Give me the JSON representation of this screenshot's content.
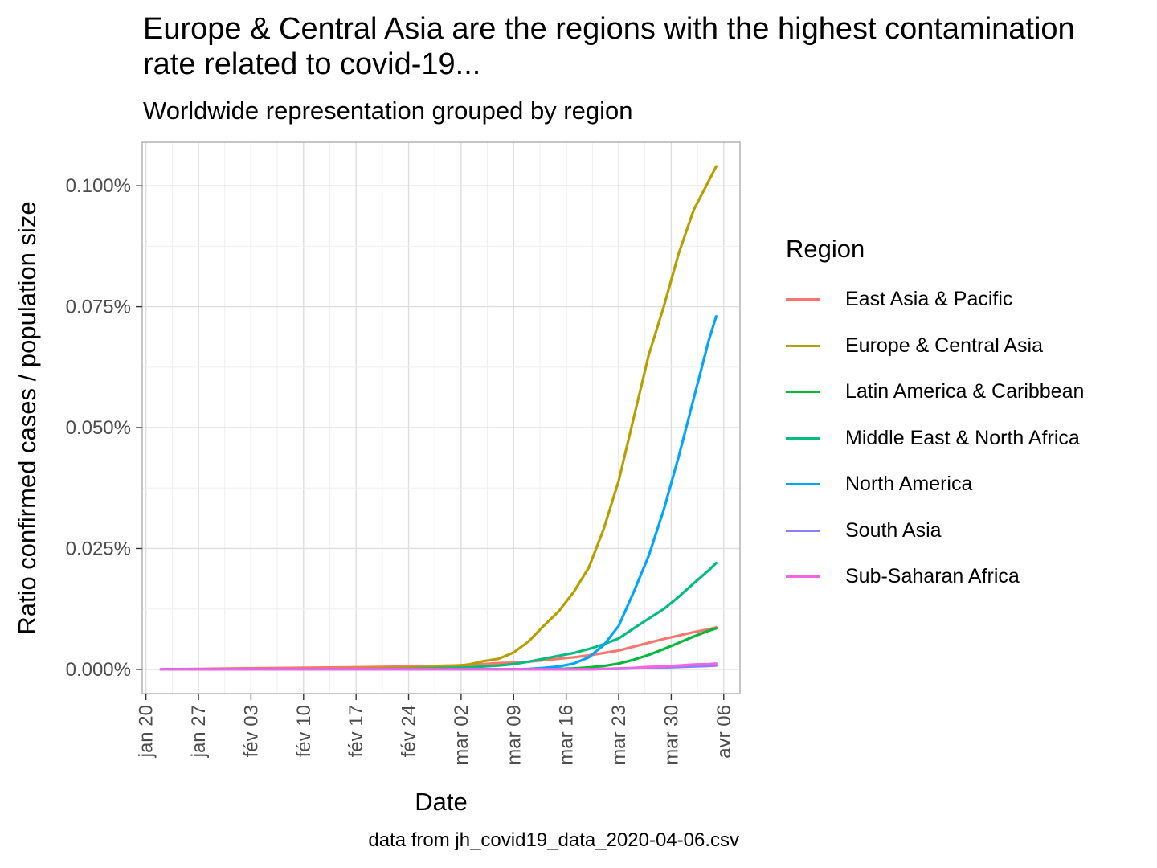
{
  "chart_data": {
    "type": "line",
    "title": "Europe & Central Asia are the regions with the highest contamination rate related to covid-19...",
    "subtitle": "Worldwide representation grouped by region",
    "caption": "data from jh_covid19_data_2020-04-06.csv",
    "xlabel": "Date",
    "ylabel": "Ratio confirmed cases / population size",
    "x_tick_labels": [
      "jan 20",
      "jan 27",
      "fév 03",
      "fév 10",
      "fév 17",
      "fév 24",
      "mar 02",
      "mar 09",
      "mar 16",
      "mar 23",
      "mar 30",
      "avr 06"
    ],
    "y_tick_labels": [
      "0.000%",
      "0.025%",
      "0.050%",
      "0.075%",
      "0.100%"
    ],
    "ylim": [
      -0.005,
      0.109
    ],
    "y_unit": "%",
    "grid": true,
    "legend_title": "Region",
    "legend_position": "right",
    "x": [
      "2020-01-22",
      "2020-02-01",
      "2020-02-15",
      "2020-02-24",
      "2020-03-01",
      "2020-03-03",
      "2020-03-05",
      "2020-03-07",
      "2020-03-09",
      "2020-03-11",
      "2020-03-13",
      "2020-03-15",
      "2020-03-17",
      "2020-03-19",
      "2020-03-21",
      "2020-03-23",
      "2020-03-25",
      "2020-03-27",
      "2020-03-29",
      "2020-03-31",
      "2020-04-02",
      "2020-04-04",
      "2020-04-05"
    ],
    "series": [
      {
        "name": "East Asia & Pacific",
        "color": "#F8766D",
        "values": [
          0,
          0.0002,
          0.0004,
          0.0006,
          0.0008,
          0.0009,
          0.0011,
          0.0013,
          0.0014,
          0.0016,
          0.0019,
          0.0022,
          0.0025,
          0.0029,
          0.0034,
          0.0039,
          0.0047,
          0.0055,
          0.0063,
          0.007,
          0.0077,
          0.0083,
          0.0087
        ]
      },
      {
        "name": "Europe & Central Asia",
        "color": "#B79F00",
        "values": [
          0,
          0,
          0.0001,
          0.0003,
          0.0007,
          0.001,
          0.0017,
          0.0022,
          0.0035,
          0.0058,
          0.009,
          0.012,
          0.016,
          0.021,
          0.029,
          0.039,
          0.052,
          0.065,
          0.075,
          0.086,
          0.095,
          0.101,
          0.104
        ]
      },
      {
        "name": "Latin America & Caribbean",
        "color": "#00BA38",
        "values": [
          0,
          0,
          0,
          0,
          0,
          0,
          0,
          0,
          0,
          0,
          0,
          0.0001,
          0.0002,
          0.0004,
          0.0007,
          0.0012,
          0.002,
          0.003,
          0.0042,
          0.0055,
          0.0068,
          0.008,
          0.0085
        ]
      },
      {
        "name": "Middle East & North Africa",
        "color": "#00BF7D",
        "values": [
          0,
          0,
          0,
          0.0001,
          0.0003,
          0.0004,
          0.0006,
          0.0008,
          0.0011,
          0.0016,
          0.0022,
          0.0028,
          0.0034,
          0.0042,
          0.0052,
          0.0064,
          0.0085,
          0.0105,
          0.0125,
          0.015,
          0.0178,
          0.0205,
          0.022
        ]
      },
      {
        "name": "North America",
        "color": "#00A5FF",
        "values": [
          0,
          0,
          0,
          0,
          0,
          0,
          0,
          0,
          0,
          0.0001,
          0.0003,
          0.0006,
          0.0012,
          0.0025,
          0.005,
          0.009,
          0.016,
          0.0235,
          0.033,
          0.044,
          0.056,
          0.068,
          0.073
        ]
      },
      {
        "name": "South Asia",
        "color": "#8B7FFF",
        "values": [
          0,
          0,
          0,
          0,
          0,
          0,
          0,
          0,
          0,
          0,
          0,
          0,
          0,
          0,
          0.0001,
          0.0001,
          0.0002,
          0.0003,
          0.0004,
          0.0005,
          0.0006,
          0.0007,
          0.0008
        ]
      },
      {
        "name": "Sub-Saharan Africa",
        "color": "#F564E3",
        "values": [
          0,
          0,
          0,
          0,
          0,
          0,
          0,
          0,
          0,
          0,
          0,
          0,
          0,
          0,
          0.0001,
          0.0002,
          0.0003,
          0.0005,
          0.0006,
          0.0008,
          0.001,
          0.0011,
          0.0012
        ]
      }
    ]
  }
}
